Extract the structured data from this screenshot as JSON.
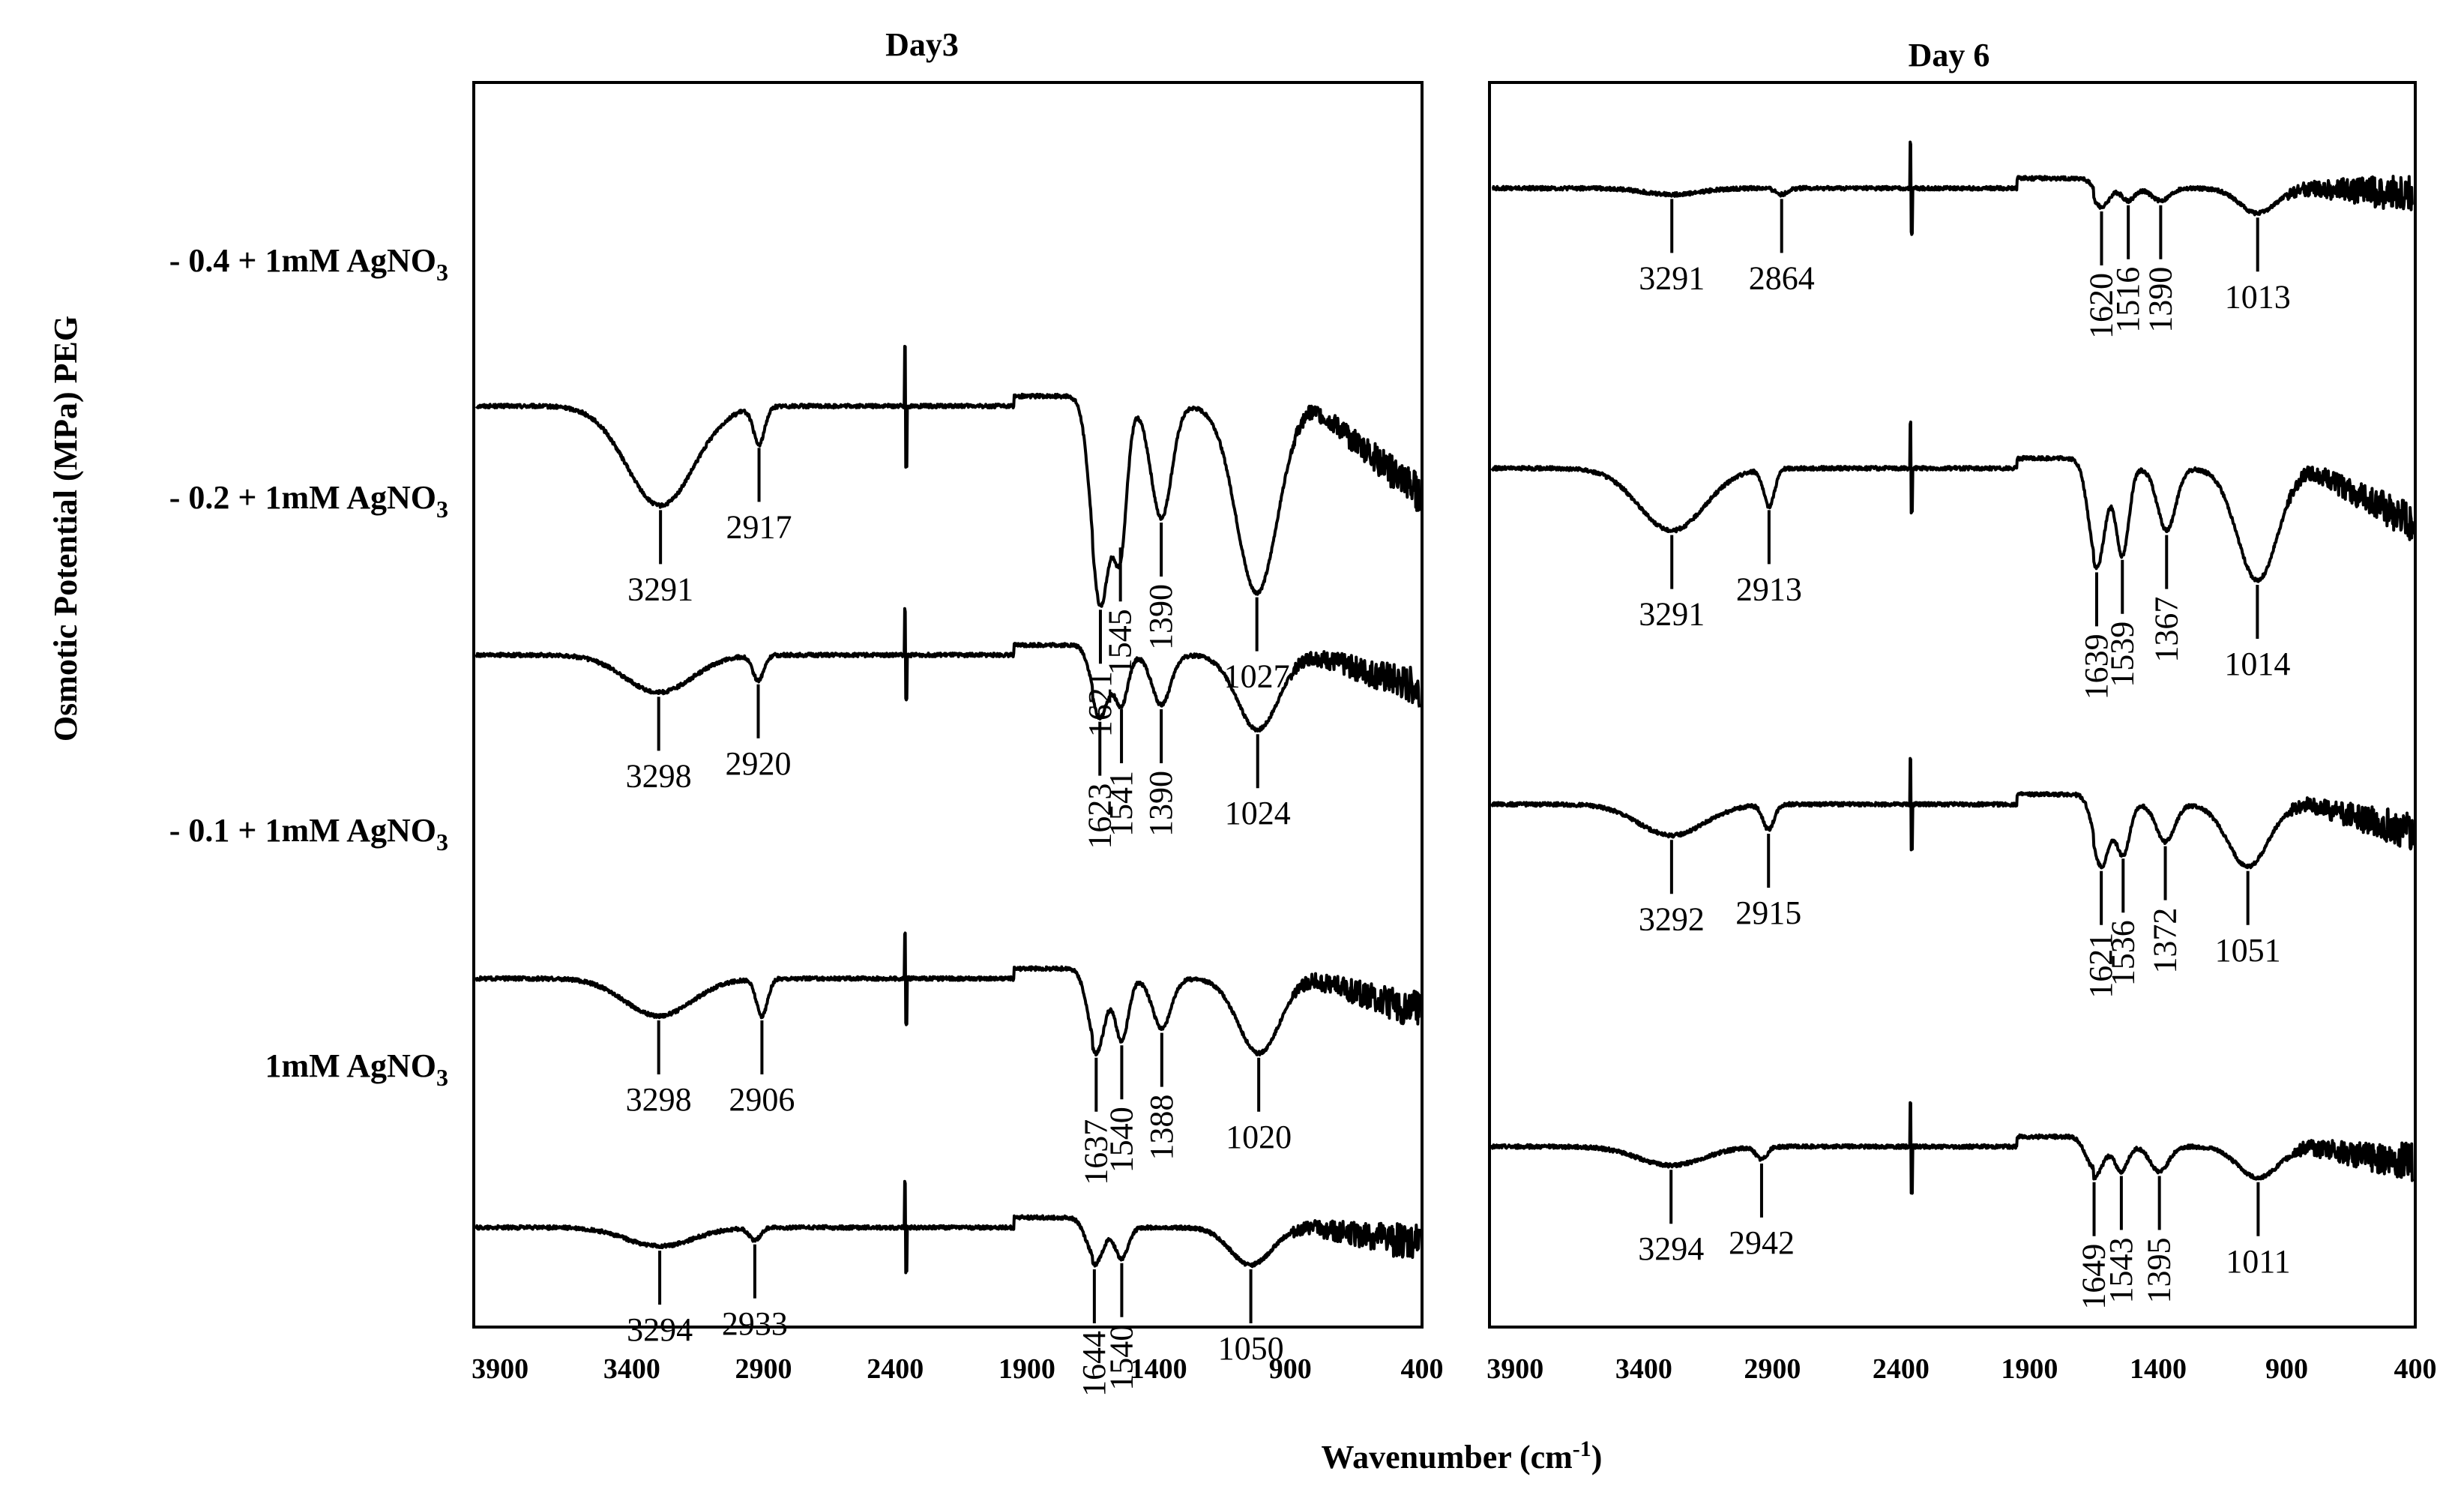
{
  "figure": {
    "ylabel": "Osmotic Potential  (MPa) PEG",
    "xlabel_main": "Wavenumber (cm",
    "xlabel_sup": "-1",
    "xlabel_tail": ")",
    "row_labels": [
      {
        "text": "- 0.4 + 1mM AgNO",
        "sub": "3"
      },
      {
        "text": "- 0.2 + 1mM AgNO",
        "sub": "3"
      },
      {
        "text": "- 0.1 + 1mM AgNO",
        "sub": "3"
      },
      {
        "text": "1mM AgNO",
        "sub": "3"
      }
    ]
  },
  "chart_data": [
    {
      "type": "line",
      "title": "Day3",
      "xlabel": "Wavenumber (cm-1)",
      "ylabel": "Osmotic Potential (MPa) PEG",
      "xlim": [
        4000,
        400
      ],
      "xticks": [
        3900,
        3400,
        2900,
        2400,
        1900,
        1400,
        900,
        400
      ],
      "series": [
        {
          "name": "- 0.4 + 1mM AgNO3",
          "baseline": 0.74,
          "peaks": [
            {
              "x": 3291,
              "depth": 0.08,
              "width": 180,
              "label": "3291"
            },
            {
              "x": 2917,
              "depth": 0.03,
              "width": 30,
              "label": "2917"
            },
            {
              "x": 1621,
              "depth": 0.16,
              "width": 50,
              "label": "1621"
            },
            {
              "x": 1545,
              "depth": 0.11,
              "width": 35,
              "label": "1545"
            },
            {
              "x": 1390,
              "depth": 0.09,
              "width": 55,
              "label": "1390"
            },
            {
              "x": 1027,
              "depth": 0.15,
              "width": 110,
              "label": "1027"
            }
          ]
        },
        {
          "name": "- 0.2 + 1mM AgNO3",
          "baseline": 0.54,
          "peaks": [
            {
              "x": 3298,
              "depth": 0.03,
              "width": 180,
              "label": "3298"
            },
            {
              "x": 2920,
              "depth": 0.02,
              "width": 30,
              "label": "2920"
            },
            {
              "x": 1623,
              "depth": 0.05,
              "width": 45,
              "label": "1623"
            },
            {
              "x": 1541,
              "depth": 0.04,
              "width": 35,
              "label": "1541"
            },
            {
              "x": 1390,
              "depth": 0.04,
              "width": 50,
              "label": "1390"
            },
            {
              "x": 1024,
              "depth": 0.06,
              "width": 110,
              "label": "1024"
            }
          ]
        },
        {
          "name": "- 0.1 + 1mM AgNO3",
          "baseline": 0.28,
          "peaks": [
            {
              "x": 3298,
              "depth": 0.03,
              "width": 180,
              "label": "3298"
            },
            {
              "x": 2906,
              "depth": 0.03,
              "width": 30,
              "label": "2906"
            },
            {
              "x": 1637,
              "depth": 0.06,
              "width": 45,
              "label": "1637"
            },
            {
              "x": 1540,
              "depth": 0.05,
              "width": 35,
              "label": "1540"
            },
            {
              "x": 1388,
              "depth": 0.04,
              "width": 50,
              "label": "1388"
            },
            {
              "x": 1020,
              "depth": 0.06,
              "width": 110,
              "label": "1020"
            }
          ]
        },
        {
          "name": "1mM AgNO3",
          "baseline": 0.08,
          "peaks": [
            {
              "x": 3294,
              "depth": 0.015,
              "width": 180,
              "label": "3294"
            },
            {
              "x": 2933,
              "depth": 0.01,
              "width": 30,
              "label": "2933"
            },
            {
              "x": 1644,
              "depth": 0.03,
              "width": 45,
              "label": "1644"
            },
            {
              "x": 1540,
              "depth": 0.025,
              "width": 35,
              "label": "1540"
            },
            {
              "x": 1050,
              "depth": 0.03,
              "width": 110,
              "label": "1050"
            }
          ]
        }
      ]
    },
    {
      "type": "line",
      "title": "Day 6",
      "xlabel": "Wavenumber (cm-1)",
      "ylabel": "Osmotic Potential (MPa) PEG",
      "xlim": [
        4000,
        400
      ],
      "xticks": [
        3900,
        3400,
        2900,
        2400,
        1900,
        1400,
        900,
        400
      ],
      "series": [
        {
          "name": "- 0.4 + 1mM AgNO3",
          "baseline": 0.915,
          "peaks": [
            {
              "x": 3291,
              "depth": 0.005,
              "width": 150,
              "label": "3291"
            },
            {
              "x": 2864,
              "depth": 0.005,
              "width": 30,
              "label": "2864"
            },
            {
              "x": 1620,
              "depth": 0.015,
              "width": 40,
              "label": "1620"
            },
            {
              "x": 1516,
              "depth": 0.01,
              "width": 35,
              "label": "1516"
            },
            {
              "x": 1390,
              "depth": 0.01,
              "width": 50,
              "label": "1390"
            },
            {
              "x": 1013,
              "depth": 0.02,
              "width": 100,
              "label": "1013"
            }
          ]
        },
        {
          "name": "- 0.2 + 1mM AgNO3",
          "baseline": 0.69,
          "peaks": [
            {
              "x": 3291,
              "depth": 0.05,
              "width": 180,
              "label": "3291"
            },
            {
              "x": 2913,
              "depth": 0.03,
              "width": 30,
              "label": "2913"
            },
            {
              "x": 1639,
              "depth": 0.08,
              "width": 45,
              "label": "1639"
            },
            {
              "x": 1539,
              "depth": 0.07,
              "width": 35,
              "label": "1539"
            },
            {
              "x": 1367,
              "depth": 0.05,
              "width": 50,
              "label": "1367"
            },
            {
              "x": 1014,
              "depth": 0.09,
              "width": 110,
              "label": "1014"
            }
          ]
        },
        {
          "name": "- 0.1 + 1mM AgNO3",
          "baseline": 0.42,
          "peaks": [
            {
              "x": 3292,
              "depth": 0.025,
              "width": 180,
              "label": "3292"
            },
            {
              "x": 2915,
              "depth": 0.02,
              "width": 30,
              "label": "2915"
            },
            {
              "x": 1621,
              "depth": 0.05,
              "width": 45,
              "label": "1621"
            },
            {
              "x": 1536,
              "depth": 0.04,
              "width": 35,
              "label": "1536"
            },
            {
              "x": 1372,
              "depth": 0.03,
              "width": 50,
              "label": "1372"
            },
            {
              "x": 1051,
              "depth": 0.05,
              "width": 110,
              "label": "1051"
            }
          ]
        },
        {
          "name": "1mM AgNO3",
          "baseline": 0.145,
          "peaks": [
            {
              "x": 3294,
              "depth": 0.015,
              "width": 180,
              "label": "3294"
            },
            {
              "x": 2942,
              "depth": 0.01,
              "width": 30,
              "label": "2942"
            },
            {
              "x": 1649,
              "depth": 0.025,
              "width": 45,
              "label": "1649"
            },
            {
              "x": 1543,
              "depth": 0.02,
              "width": 35,
              "label": "1543"
            },
            {
              "x": 1395,
              "depth": 0.02,
              "width": 50,
              "label": "1395"
            },
            {
              "x": 1011,
              "depth": 0.025,
              "width": 110,
              "label": "1011"
            }
          ]
        }
      ]
    }
  ]
}
